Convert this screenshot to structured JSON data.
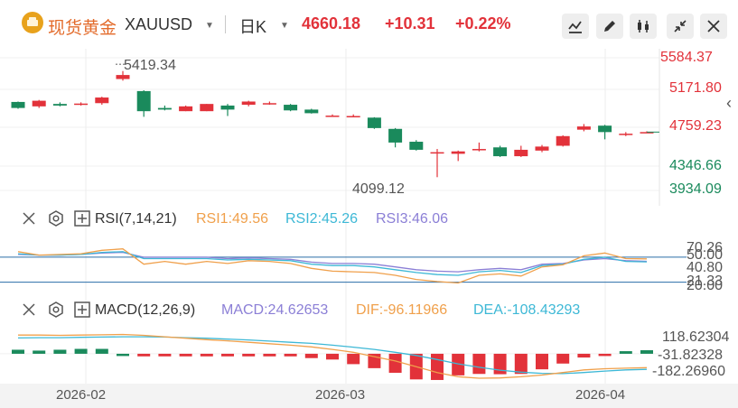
{
  "header": {
    "name": "现货黄金",
    "code": "XAUUSD",
    "period": "日K",
    "price": "4660.18",
    "change": "+10.31",
    "change_pct": "+0.22%",
    "colors": {
      "up": "#e2323a",
      "down": "#1a8a5c",
      "accent": "#e36b2b"
    }
  },
  "toolbar": [
    "line-chart-icon",
    "pencil-icon",
    "candlestick-icon",
    "collapse-icon",
    "close-icon"
  ],
  "main_panel": {
    "axis_labels": [
      "5584.37",
      "5171.80",
      "4759.23",
      "4346.66",
      "3934.09"
    ],
    "max_label": "5419.34",
    "min_label": "4099.12"
  },
  "rsi_panel": {
    "title": "RSI(7,14,21)",
    "rsi1": "RSI1:49.56",
    "rsi2": "RSI2:45.26",
    "rsi3": "RSI3:46.06",
    "axis_labels": [
      "70.26",
      "50.00",
      "40.80",
      "21.33",
      "20.00"
    ],
    "colors": {
      "rsi1": "#f0a04b",
      "rsi2": "#3db8d6",
      "rsi3": "#8b7fd6"
    }
  },
  "macd_panel": {
    "title": "MACD(12,26,9)",
    "macd": "MACD:24.62653",
    "dif": "DIF:-96.11966",
    "dea": "DEA:-108.43293",
    "axis_labels": [
      "118.62304",
      "-31.82328",
      "-182.26960"
    ],
    "colors": {
      "macd": "#8b7fd6",
      "dif": "#f0a04b",
      "dea": "#3db8d6"
    }
  },
  "x_axis": [
    "2026-02",
    "2026-03",
    "2026-04"
  ],
  "chart_data": {
    "type": "candlestick",
    "ylim": [
      3934.09,
      5584.37
    ],
    "candles": [
      {
        "o": 5035,
        "c": 4960,
        "h": 5040,
        "l": 4950
      },
      {
        "o": 4980,
        "c": 5050,
        "h": 5060,
        "l": 4960
      },
      {
        "o": 5010,
        "c": 4990,
        "h": 5030,
        "l": 4980
      },
      {
        "o": 5010,
        "c": 5015,
        "h": 5030,
        "l": 4990
      },
      {
        "o": 5020,
        "c": 5090,
        "h": 5100,
        "l": 5000
      },
      {
        "o": 5320,
        "c": 5370,
        "h": 5419.34,
        "l": 5300
      },
      {
        "o": 5170,
        "c": 4920,
        "h": 5180,
        "l": 4850
      },
      {
        "o": 4960,
        "c": 4940,
        "h": 4990,
        "l": 4930
      },
      {
        "o": 4920,
        "c": 4980,
        "h": 4990,
        "l": 4920
      },
      {
        "o": 4920,
        "c": 5010,
        "h": 5010,
        "l": 4920
      },
      {
        "o": 4990,
        "c": 4940,
        "h": 5010,
        "l": 4860
      },
      {
        "o": 5000,
        "c": 5040,
        "h": 5050,
        "l": 4980
      },
      {
        "o": 5010,
        "c": 5020,
        "h": 5040,
        "l": 5000
      },
      {
        "o": 5000,
        "c": 4930,
        "h": 5010,
        "l": 4920
      },
      {
        "o": 4940,
        "c": 4895,
        "h": 4950,
        "l": 4890
      },
      {
        "o": 4860,
        "c": 4865,
        "h": 4880,
        "l": 4850
      },
      {
        "o": 4860,
        "c": 4860,
        "h": 4880,
        "l": 4850
      },
      {
        "o": 4840,
        "c": 4710,
        "h": 4845,
        "l": 4700
      },
      {
        "o": 4700,
        "c": 4530,
        "h": 4710,
        "l": 4470
      },
      {
        "o": 4540,
        "c": 4440,
        "h": 4560,
        "l": 4430
      },
      {
        "o": 4410,
        "c": 4410,
        "h": 4450,
        "l": 4099.12
      },
      {
        "o": 4390,
        "c": 4420,
        "h": 4430,
        "l": 4300
      },
      {
        "o": 4440,
        "c": 4450,
        "h": 4530,
        "l": 4420
      },
      {
        "o": 4470,
        "c": 4360,
        "h": 4490,
        "l": 4350
      },
      {
        "o": 4360,
        "c": 4440,
        "h": 4490,
        "l": 4350
      },
      {
        "o": 4430,
        "c": 4480,
        "h": 4500,
        "l": 4410
      },
      {
        "o": 4490,
        "c": 4610,
        "h": 4620,
        "l": 4480
      },
      {
        "o": 4690,
        "c": 4730,
        "h": 4760,
        "l": 4670
      },
      {
        "o": 4740,
        "c": 4660,
        "h": 4750,
        "l": 4570
      },
      {
        "o": 4640,
        "c": 4640,
        "h": 4660,
        "l": 4610
      },
      {
        "o": 4650,
        "c": 4660.18,
        "h": 4670,
        "l": 4650
      }
    ],
    "rsi": {
      "ylim": [
        0,
        100
      ],
      "rsi1": [
        60,
        55,
        56,
        57,
        62,
        64,
        42,
        46,
        42,
        46,
        43,
        47,
        46,
        43,
        36,
        32,
        31,
        30,
        26,
        20,
        17,
        15,
        26,
        28,
        25,
        38,
        41,
        54,
        58,
        50,
        49.56
      ],
      "rsi2": [
        57,
        55,
        55,
        56,
        59,
        60,
        50,
        50,
        50,
        50,
        48,
        49,
        48,
        47,
        42,
        40,
        40,
        38,
        34,
        30,
        27,
        26,
        31,
        33,
        30,
        40,
        42,
        49,
        52,
        46,
        45.26
      ],
      "rsi3": [
        56,
        55,
        55,
        56,
        58,
        59,
        52,
        52,
        52,
        52,
        50,
        51,
        50,
        49,
        45,
        43,
        43,
        42,
        38,
        34,
        32,
        31,
        34,
        36,
        34,
        42,
        43,
        48,
        50,
        47,
        46.06
      ]
    },
    "macd": {
      "ylim": [
        -182.2696,
        118.62304
      ],
      "hist": [
        28,
        22,
        28,
        34,
        34,
        0,
        -18,
        -18,
        -18,
        -18,
        -18,
        -18,
        -18,
        -18,
        -30,
        -40,
        -72,
        -100,
        -132,
        -178,
        -182,
        -150,
        -140,
        -142,
        -140,
        -108,
        -68,
        -26,
        -4,
        18,
        24.62653
      ],
      "dif": [
        130,
        130,
        128,
        130,
        132,
        134,
        128,
        118,
        108,
        98,
        90,
        80,
        70,
        60,
        48,
        30,
        10,
        -20,
        -50,
        -90,
        -130,
        -160,
        -170,
        -168,
        -160,
        -148,
        -130,
        -112,
        -104,
        -100,
        -96.11966
      ],
      "dea": [
        110,
        112,
        112,
        114,
        116,
        118,
        118,
        116,
        112,
        108,
        102,
        96,
        88,
        80,
        72,
        60,
        46,
        30,
        10,
        -12,
        -40,
        -70,
        -94,
        -114,
        -128,
        -136,
        -138,
        -130,
        -120,
        -112,
        -108.43293
      ]
    }
  }
}
